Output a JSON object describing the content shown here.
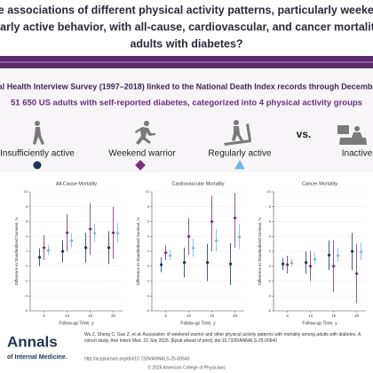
{
  "header": {
    "title_lines": [
      "re the associations of different physical activity patterns, particularly weekend w",
      "regularly active behavior, with all-cause, cardiovascular, and cancer mortality am",
      "adults with diabetes?"
    ]
  },
  "study": {
    "source": "nal Health Interview Survey (1997–2018) linked to the National Death Index records through December",
    "population": "51 650 US adults with self-reported diabetes, categorized into 4 physical activity groups"
  },
  "groups": [
    "Insufficiently active",
    "Weekend warrior",
    "Regularly active",
    "Inactive"
  ],
  "vs": "vs.",
  "chart_data": [
    {
      "type": "errorbar",
      "title": "All-Cause Mortality",
      "x_label": "Follow-up Time, y",
      "y_label": "Difference in Standardized Survival, %",
      "xlim": [
        2,
        22
      ],
      "xticks": [
        5,
        10,
        15,
        20
      ],
      "ylim": [
        -6,
        10
      ],
      "yticks": [
        -6,
        -4,
        -2,
        0,
        2,
        4,
        6,
        8,
        10
      ],
      "series": [
        {
          "color": "#1d3557",
          "marker": "circle",
          "x": [
            5,
            10,
            15,
            20
          ],
          "values": [
            1.2,
            2,
            2.5,
            2.5
          ],
          "lower": [
            0,
            0.5,
            0.5,
            0.3
          ],
          "upper": [
            2.4,
            3.5,
            4.5,
            4.7
          ]
        },
        {
          "color": "#7b2d7e",
          "marker": "diamond",
          "x": [
            5,
            10,
            15,
            20
          ],
          "values": [
            2.5,
            4.5,
            5,
            4.5
          ],
          "lower": [
            0.8,
            2,
            1.5,
            1
          ],
          "upper": [
            4.2,
            7,
            8.5,
            8
          ]
        },
        {
          "color": "#6fb6e6",
          "marker": "triangle",
          "x": [
            5,
            10,
            15,
            20
          ],
          "values": [
            2.2,
            3.5,
            4.5,
            4.5
          ],
          "lower": [
            1.5,
            2.5,
            3.3,
            3.2
          ],
          "upper": [
            2.9,
            4.5,
            5.7,
            5.8
          ]
        }
      ]
    },
    {
      "type": "errorbar",
      "title": "Cardiovascular Mortality",
      "x_label": "Follow-up Time, y",
      "y_label": "Difference in Standardized Survival, %",
      "xlim": [
        2,
        22
      ],
      "xticks": [
        5,
        10,
        15,
        20
      ],
      "ylim": [
        -6,
        10
      ],
      "yticks": [
        -6,
        -4,
        -2,
        0,
        2,
        4,
        6,
        8,
        10
      ],
      "series": [
        {
          "color": "#1d3557",
          "marker": "circle",
          "x": [
            5,
            10,
            15,
            20
          ],
          "values": [
            0.2,
            0.5,
            0.5,
            0.3
          ],
          "lower": [
            -0.8,
            -1.5,
            -2,
            -2.5
          ],
          "upper": [
            1.2,
            2.5,
            3,
            3.1
          ]
        },
        {
          "color": "#7b2d7e",
          "marker": "diamond",
          "x": [
            5,
            10,
            15,
            20
          ],
          "values": [
            1.8,
            4,
            6,
            6.5
          ],
          "lower": [
            0.8,
            1.5,
            2,
            2.5
          ],
          "upper": [
            2.8,
            6.5,
            9.5,
            9.8
          ]
        },
        {
          "color": "#6fb6e6",
          "marker": "triangle",
          "x": [
            5,
            10,
            15,
            20
          ],
          "values": [
            1.5,
            2.5,
            3.5,
            4
          ],
          "lower": [
            0.8,
            1.3,
            2,
            2.3
          ],
          "upper": [
            2.2,
            3.7,
            5,
            5.7
          ]
        }
      ]
    },
    {
      "type": "errorbar",
      "title": "Cancer Mortality",
      "x_label": "Follow-up Time, y",
      "y_label": "Difference in Standardized Survival, %",
      "xlim": [
        2,
        22
      ],
      "xticks": [
        5,
        10,
        15,
        20
      ],
      "ylim": [
        -6,
        10
      ],
      "yticks": [
        -6,
        -4,
        -2,
        0,
        2,
        4,
        6,
        8,
        10
      ],
      "series": [
        {
          "color": "#1d3557",
          "marker": "circle",
          "x": [
            5,
            10,
            15,
            20
          ],
          "values": [
            0.3,
            0.5,
            1.5,
            2
          ],
          "lower": [
            -0.5,
            -1,
            -0.5,
            -0.5
          ],
          "upper": [
            1.1,
            2,
            3.5,
            4.5
          ]
        },
        {
          "color": "#7b2d7e",
          "marker": "diamond",
          "x": [
            5,
            10,
            15,
            20
          ],
          "values": [
            0.2,
            0,
            0,
            -1
          ],
          "lower": [
            -1,
            -2,
            -3.5,
            -5
          ],
          "upper": [
            1.4,
            2,
            3.5,
            3
          ]
        },
        {
          "color": "#6fb6e6",
          "marker": "triangle",
          "x": [
            5,
            10,
            15,
            20
          ],
          "values": [
            0.5,
            1,
            1.5,
            2
          ],
          "lower": [
            0,
            0.2,
            0.5,
            0.8
          ],
          "upper": [
            1,
            1.8,
            2.5,
            3.2
          ]
        }
      ]
    }
  ],
  "footer": {
    "logo": [
      "Annals",
      "of Internal Medicine."
    ],
    "citation": "Wu Z, Sheng C, Guo Z, et al. Association of weekend warrior and other physical activity patterns with mortality among adults with diabetes. A cohort study. Ann Intern Med. 22 July 2025. [Epub ahead of print]. doi:10.7326/ANNALS-25-00640",
    "url": "http://acpjournals.org/doi/10.7326/ANNALS-25-00640",
    "copyright": "© 2025 American College of Physicians"
  }
}
